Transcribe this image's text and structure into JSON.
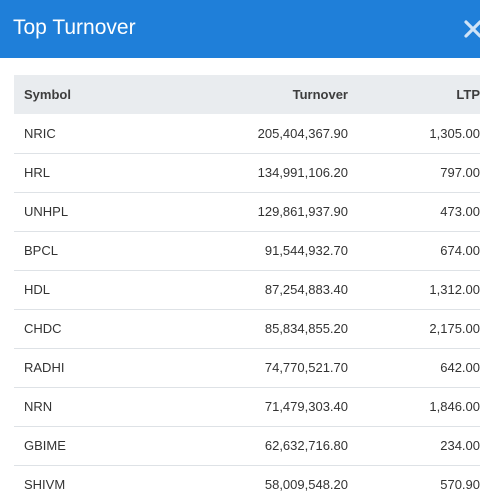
{
  "header": {
    "title": "Top Turnover",
    "close_icon": "close-icon"
  },
  "table": {
    "columns": [
      "Symbol",
      "Turnover",
      "LTP"
    ],
    "rows": [
      {
        "symbol": "NRIC",
        "turnover": "205,404,367.90",
        "ltp": "1,305.00"
      },
      {
        "symbol": "HRL",
        "turnover": "134,991,106.20",
        "ltp": "797.00"
      },
      {
        "symbol": "UNHPL",
        "turnover": "129,861,937.90",
        "ltp": "473.00"
      },
      {
        "symbol": "BPCL",
        "turnover": "91,544,932.70",
        "ltp": "674.00"
      },
      {
        "symbol": "HDL",
        "turnover": "87,254,883.40",
        "ltp": "1,312.00"
      },
      {
        "symbol": "CHDC",
        "turnover": "85,834,855.20",
        "ltp": "2,175.00"
      },
      {
        "symbol": "RADHI",
        "turnover": "74,770,521.70",
        "ltp": "642.00"
      },
      {
        "symbol": "NRN",
        "turnover": "71,479,303.40",
        "ltp": "1,846.00"
      },
      {
        "symbol": "GBIME",
        "turnover": "62,632,716.80",
        "ltp": "234.00"
      },
      {
        "symbol": "SHIVM",
        "turnover": "58,009,548.20",
        "ltp": "570.90"
      }
    ]
  },
  "colors": {
    "header_bg": "#1f7fd9",
    "table_header_bg": "#e9ecef",
    "row_border": "#dee2e6"
  }
}
